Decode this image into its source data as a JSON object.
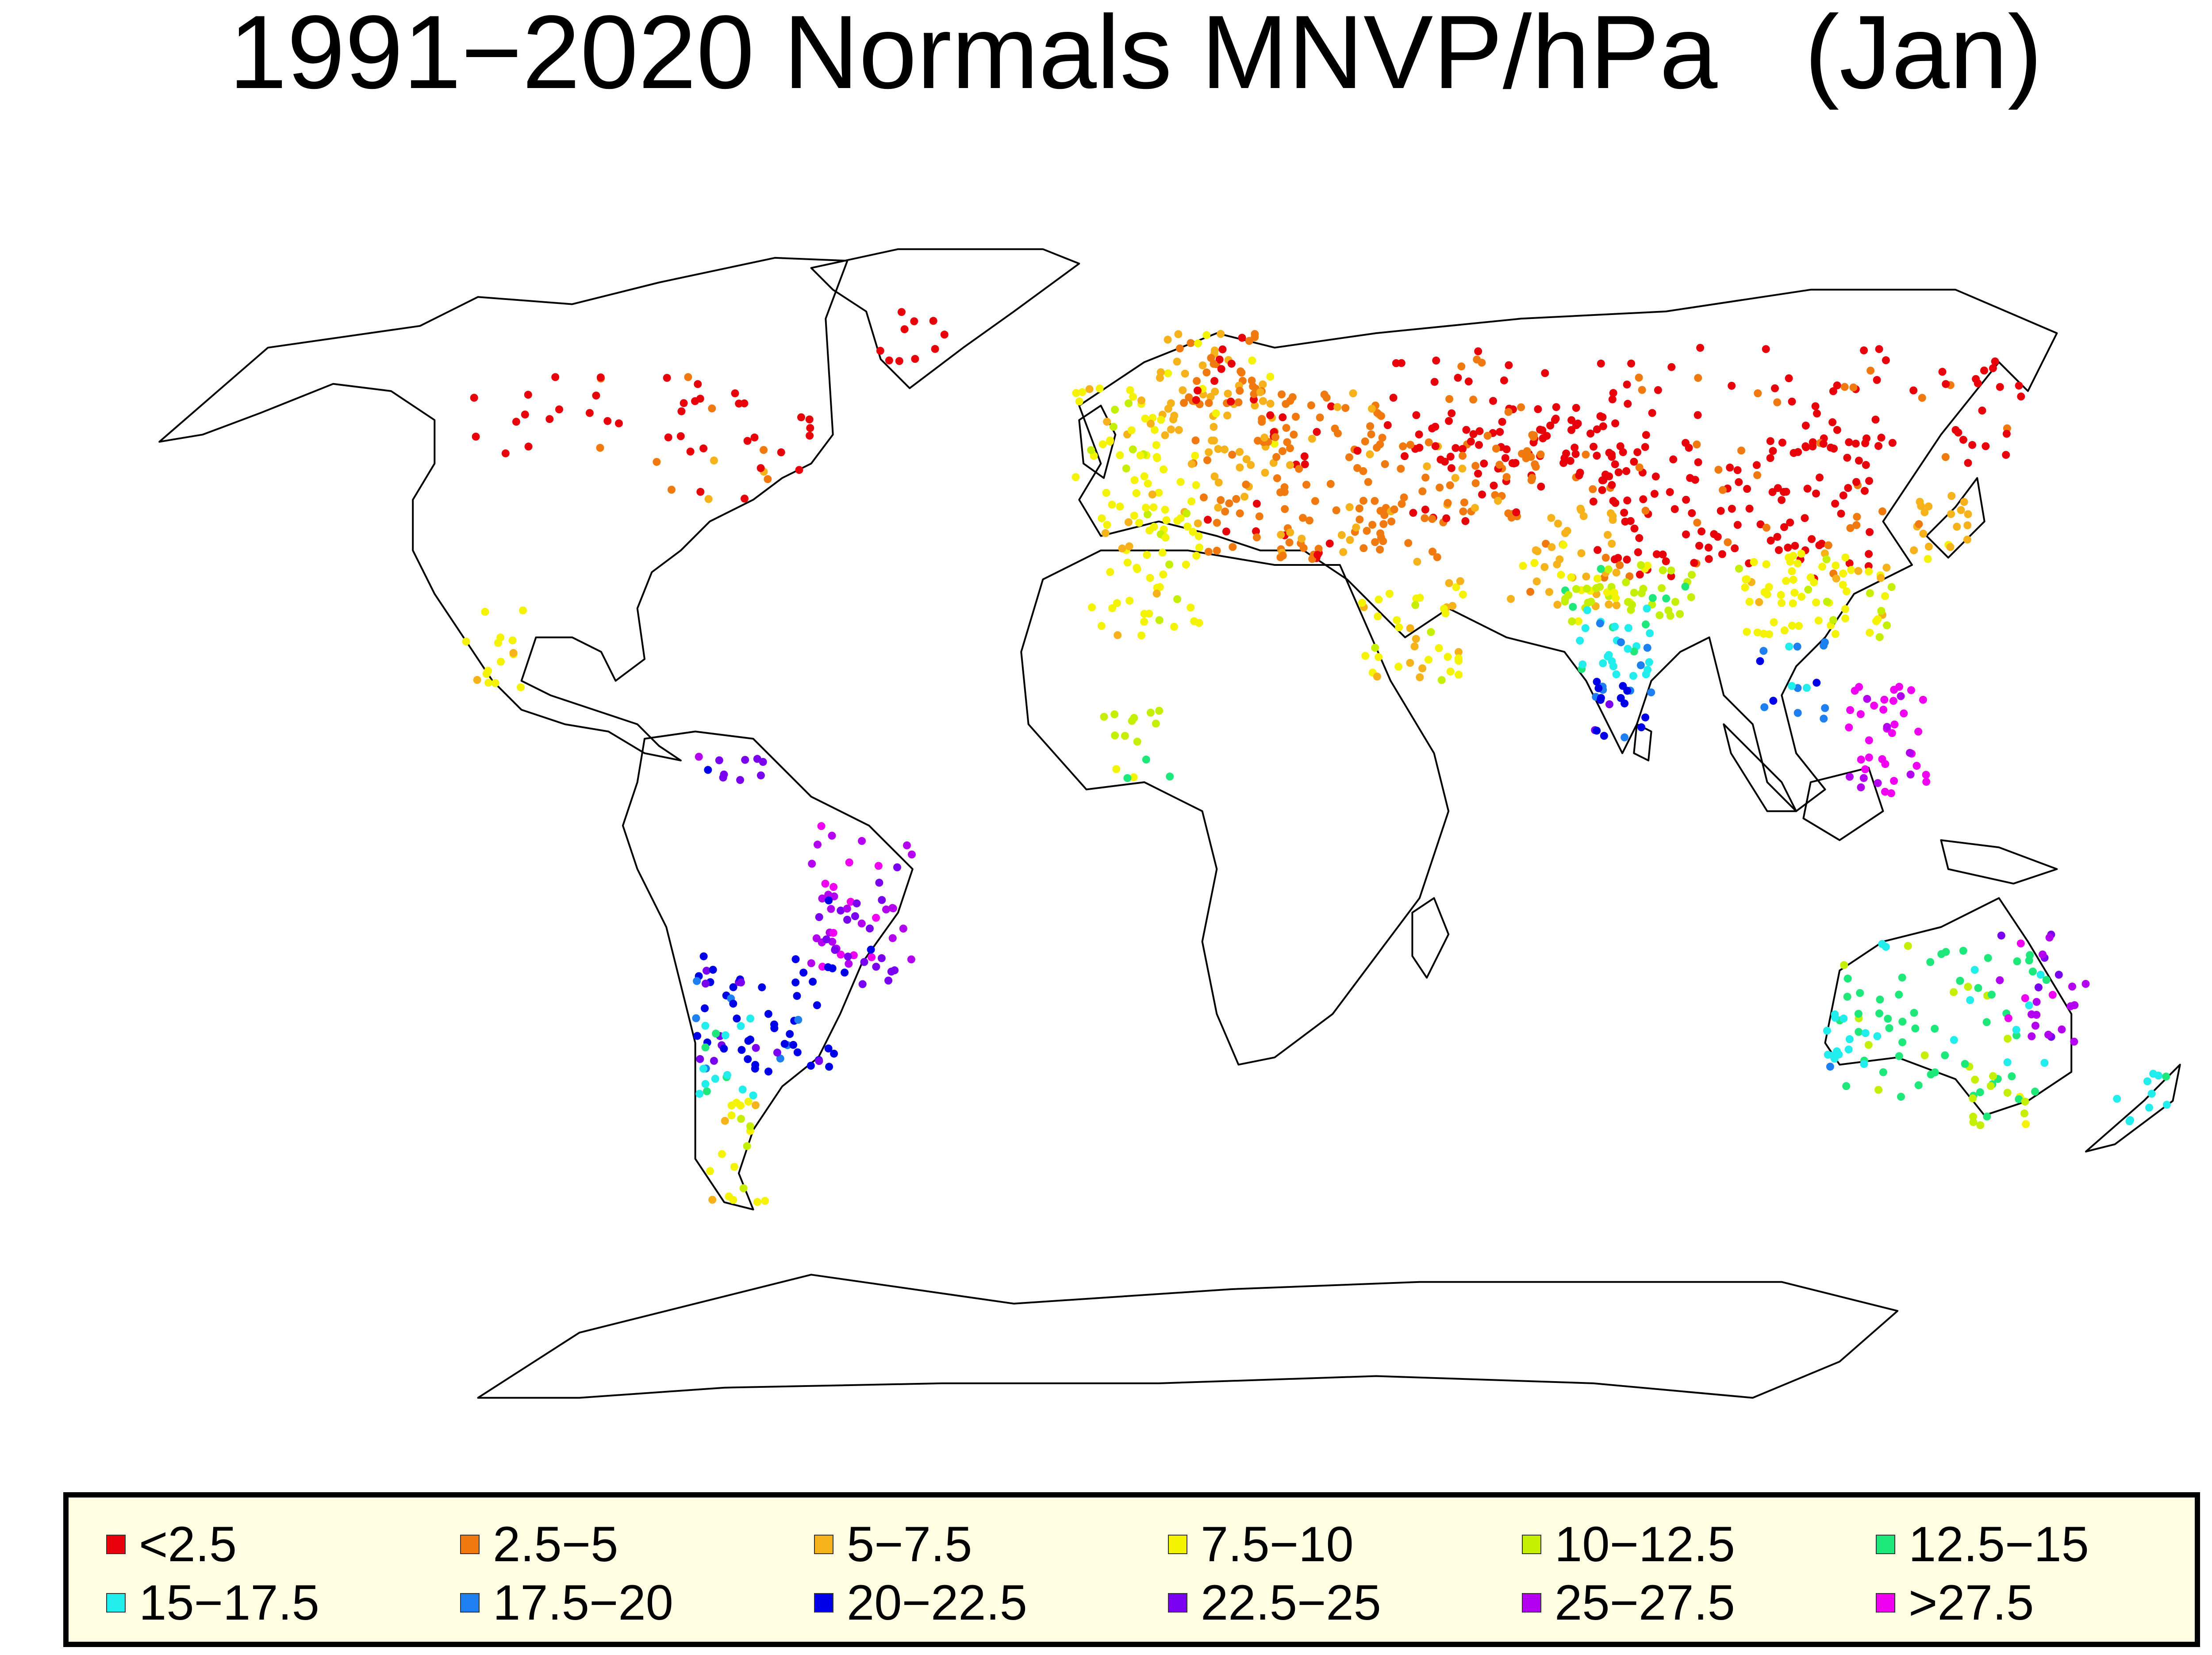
{
  "title": "1991−2020 Normals MNVP/hPa   (Jan)",
  "legend": [
    {
      "label": "<2.5",
      "color": "#e8000b"
    },
    {
      "label": "2.5−5",
      "color": "#f07a10"
    },
    {
      "label": "5−7.5",
      "color": "#f5b21a"
    },
    {
      "label": "7.5−10",
      "color": "#f4f400"
    },
    {
      "label": "10−12.5",
      "color": "#c4f000"
    },
    {
      "label": "12.5−15",
      "color": "#1fe87a"
    },
    {
      "label": "15−17.5",
      "color": "#21eded"
    },
    {
      "label": "17.5−20",
      "color": "#1e7ff0"
    },
    {
      "label": "20−22.5",
      "color": "#0000e8"
    },
    {
      "label": "22.5−25",
      "color": "#7a00f0"
    },
    {
      "label": "25−27.5",
      "color": "#b400f0"
    },
    {
      "label": ">27.5",
      "color": "#f000f0"
    }
  ]
}
